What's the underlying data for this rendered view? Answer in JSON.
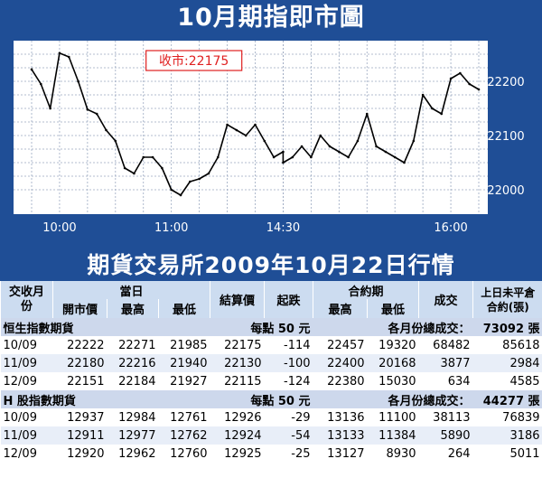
{
  "title_top": "10月期指即市圖",
  "title_bottom": "期貨交易所2009年10月22日行情",
  "colors": {
    "banner": "#1f4e96",
    "header_bg": "#ccdcf0",
    "stripe": "#e8eef8",
    "callout_border": "#e02020",
    "callout_text": "#e02020",
    "series": "#000000"
  },
  "chart_data": {
    "type": "line",
    "callout": "收市:22175",
    "x_ticks": [
      "10:00",
      "11:00",
      "14:30",
      "16:00"
    ],
    "y_ticks": [
      22200,
      22100,
      22000
    ],
    "ylim": [
      21955,
      22275
    ],
    "grid": true,
    "x": [
      "09:45",
      "09:50",
      "09:55",
      "10:00",
      "10:05",
      "10:10",
      "10:15",
      "10:20",
      "10:25",
      "10:30",
      "10:35",
      "10:40",
      "10:45",
      "10:50",
      "10:55",
      "11:00",
      "11:05",
      "11:10",
      "11:15",
      "11:20",
      "11:25",
      "11:30",
      "11:35",
      "11:40",
      "11:45",
      "11:50",
      "11:55",
      "12:00",
      "14:30",
      "14:35",
      "14:40",
      "14:45",
      "14:50",
      "14:55",
      "15:00",
      "15:05",
      "15:10",
      "15:15",
      "15:20",
      "15:25",
      "15:30",
      "15:35",
      "15:40",
      "15:45",
      "15:50",
      "15:55",
      "16:00",
      "16:05",
      "16:10",
      "16:15"
    ],
    "values": [
      22222,
      22195,
      22150,
      22252,
      22245,
      22200,
      22148,
      22140,
      22110,
      22090,
      22040,
      22030,
      22060,
      22060,
      22040,
      22000,
      21990,
      22015,
      22020,
      22030,
      22060,
      22120,
      22110,
      22100,
      22120,
      22090,
      22060,
      22070,
      22050,
      22060,
      22080,
      22060,
      22100,
      22080,
      22070,
      22060,
      22090,
      22140,
      22080,
      22070,
      22060,
      22050,
      22090,
      22175,
      22150,
      22140,
      22205,
      22215,
      22195,
      22185
    ]
  },
  "table": {
    "headers": {
      "month": "交收月份",
      "day": "當日",
      "open": "開市價",
      "high": "最高",
      "low": "最低",
      "settle": "結算價",
      "change": "起跌",
      "contract": "合約期",
      "c_high": "最高",
      "c_low": "最低",
      "volume": "成交",
      "oi": "上日未平倉合約(張)"
    },
    "sections": [
      {
        "name": "恒生指數期貨",
        "per_point": "每點 50 元",
        "total_label": "各月份總成交：",
        "total": "73092 張",
        "rows": [
          [
            "10/09",
            "22222",
            "22271",
            "21985",
            "22175",
            "-114",
            "22457",
            "19320",
            "68482",
            "85618"
          ],
          [
            "11/09",
            "22180",
            "22216",
            "21940",
            "22130",
            "-100",
            "22400",
            "20168",
            "3877",
            "2984"
          ],
          [
            "12/09",
            "22151",
            "22184",
            "21927",
            "22115",
            "-124",
            "22380",
            "15030",
            "634",
            "4585"
          ]
        ]
      },
      {
        "name": "H 股指數期貨",
        "per_point": "每點 50 元",
        "total_label": "各月份總成交：",
        "total": "44277 張",
        "rows": [
          [
            "10/09",
            "12937",
            "12984",
            "12761",
            "12926",
            "-29",
            "13136",
            "11100",
            "38113",
            "76839"
          ],
          [
            "11/09",
            "12911",
            "12977",
            "12762",
            "12924",
            "-54",
            "13133",
            "11384",
            "5890",
            "3186"
          ],
          [
            "12/09",
            "12920",
            "12962",
            "12760",
            "12925",
            "-25",
            "13127",
            "8930",
            "264",
            "5011"
          ]
        ]
      }
    ]
  }
}
